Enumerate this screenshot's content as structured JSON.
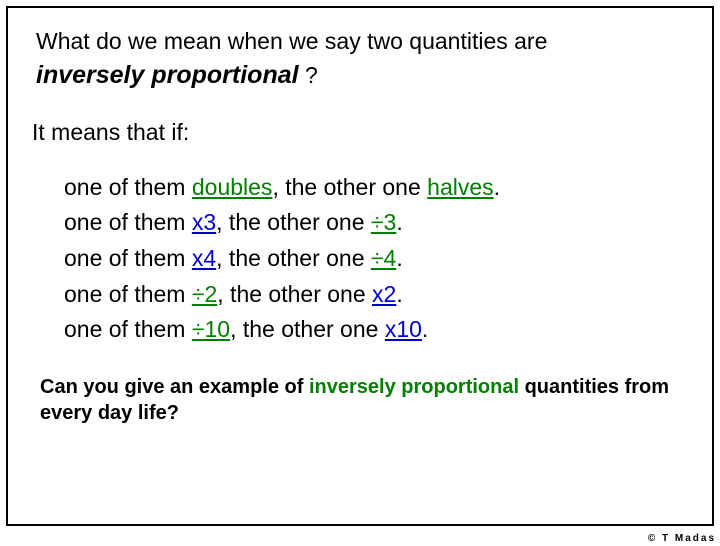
{
  "colors": {
    "text": "#000000",
    "accent_green": "#008000",
    "accent_blue": "#0000cc",
    "background": "#ffffff",
    "border": "#000000"
  },
  "typography": {
    "body_fontsize": 23,
    "italic_term_fontsize": 25,
    "final_q_fontsize": 20,
    "copyright_fontsize": 10,
    "font_family": "Verdana"
  },
  "intro": {
    "line1": "What do we mean when we say two quantities are",
    "term": "inversely proportional",
    "qmark": " ?"
  },
  "means": "It means that if:",
  "rows": [
    {
      "pre": "one of them ",
      "a": "doubles",
      "mid": ", the other one ",
      "b": "halves",
      "post": "."
    },
    {
      "pre": "one of them ",
      "a": "x3",
      "mid": ", the other one ",
      "b": "÷3",
      "post": "."
    },
    {
      "pre": "one of them ",
      "a": "x4",
      "mid": ", the other one ",
      "b": "÷4",
      "post": "."
    },
    {
      "pre": "one of them ",
      "a": "÷2",
      "mid": ", the other one ",
      "b": "x2",
      "post": "."
    },
    {
      "pre": "one of them ",
      "a": "÷10",
      "mid": ", the other one ",
      "b": "x10",
      "post": "."
    }
  ],
  "row_styles": [
    {
      "a_class": "ul-green",
      "b_class": "ul-green"
    },
    {
      "a_class": "ul-blue",
      "b_class": "ul-green"
    },
    {
      "a_class": "ul-blue",
      "b_class": "ul-green"
    },
    {
      "a_class": "ul-green",
      "b_class": "ul-blue"
    },
    {
      "a_class": "ul-green",
      "b_class": "ul-blue"
    }
  ],
  "finalq": {
    "part1": "Can you give an example of ",
    "highlight": "inversely proportional",
    "part2": " quantities from every day life?"
  },
  "copyright": "© T Madas"
}
